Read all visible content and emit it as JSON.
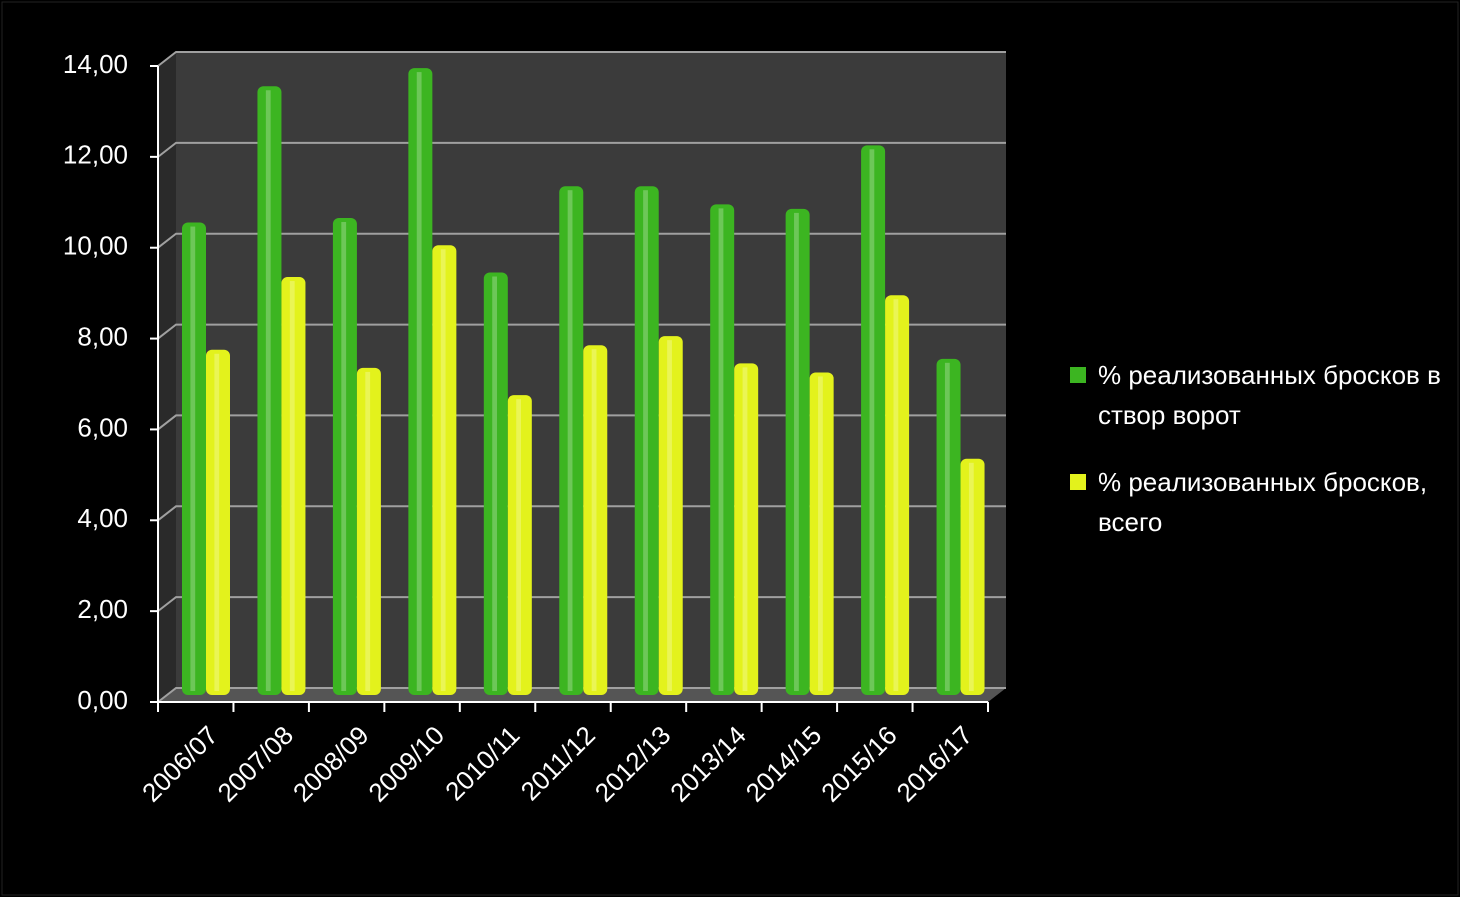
{
  "chart_data": {
    "type": "bar",
    "categories": [
      "2006/07",
      "2007/08",
      "2008/09",
      "2009/10",
      "2010/11",
      "2011/12",
      "2012/13",
      "2013/14",
      "2014/15",
      "2015/16",
      "2016/17"
    ],
    "series": [
      {
        "name": "% реализованных бросков в створ ворот",
        "color": "#3cb521",
        "values": [
          10.4,
          13.4,
          10.5,
          13.8,
          9.3,
          11.2,
          11.2,
          10.8,
          10.7,
          12.1,
          7.4
        ]
      },
      {
        "name": "% реализованных бросков, всего",
        "color": "#e3f21c",
        "values": [
          7.6,
          9.2,
          7.2,
          9.9,
          6.6,
          7.7,
          7.9,
          7.3,
          7.1,
          8.8,
          5.2
        ]
      }
    ],
    "ylim": [
      0,
      14
    ],
    "yticks": [
      {
        "value": 0,
        "label": "0,00"
      },
      {
        "value": 2,
        "label": "2,00"
      },
      {
        "value": 4,
        "label": "4,00"
      },
      {
        "value": 6,
        "label": "6,00"
      },
      {
        "value": 8,
        "label": "8,00"
      },
      {
        "value": 10,
        "label": "10,00"
      },
      {
        "value": 12,
        "label": "12,00"
      },
      {
        "value": 14,
        "label": "14,00"
      }
    ],
    "grid": true,
    "legend": "right"
  }
}
